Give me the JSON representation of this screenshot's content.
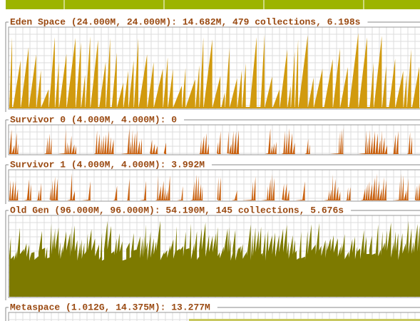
{
  "panels": [
    {
      "title": "Eden Space (24.000M, 24.000M): 14.682M, 479 collections, 6.198s"
    },
    {
      "title": "Survivor 0 (4.000M, 4.000M): 0"
    },
    {
      "title": "Survivor 1 (4.000M, 4.000M): 3.992M"
    },
    {
      "title": "Old Gen (96.000M, 96.000M): 54.190M, 145 collections, 5.676s"
    },
    {
      "title": "Metaspace (1.012G, 14.375M): 13.277M"
    }
  ]
}
